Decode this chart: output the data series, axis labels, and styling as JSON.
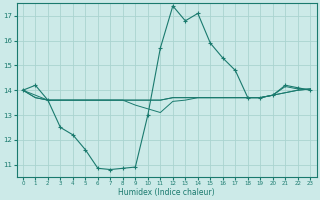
{
  "background_color": "#cceae8",
  "grid_color": "#aad4d0",
  "line_color": "#1a7a6e",
  "xlabel": "Humidex (Indice chaleur)",
  "xlim": [
    -0.5,
    23.5
  ],
  "ylim": [
    10.5,
    17.5
  ],
  "yticks": [
    11,
    12,
    13,
    14,
    15,
    16,
    17
  ],
  "xticks": [
    0,
    1,
    2,
    3,
    4,
    5,
    6,
    7,
    8,
    9,
    10,
    11,
    12,
    13,
    14,
    15,
    16,
    17,
    18,
    19,
    20,
    21,
    22,
    23
  ],
  "series_with_markers": {
    "x": [
      0,
      1,
      2,
      3,
      4,
      5,
      6,
      7,
      8,
      9,
      10,
      11,
      12,
      13,
      14,
      15,
      16,
      17,
      18,
      19,
      20,
      21,
      22,
      23
    ],
    "y": [
      14.0,
      14.2,
      13.6,
      12.5,
      12.2,
      11.6,
      10.85,
      10.8,
      10.85,
      10.9,
      13.0,
      15.7,
      17.4,
      16.8,
      17.1,
      15.9,
      15.3,
      14.8,
      13.7,
      13.7,
      13.8,
      14.2,
      14.1,
      14.0
    ]
  },
  "series_flat": [
    {
      "x": [
        0,
        1,
        2,
        3,
        4,
        5,
        6,
        7,
        8,
        9,
        10,
        11,
        12,
        13,
        14,
        15,
        16,
        17,
        18,
        19,
        20,
        21,
        22,
        23
      ],
      "y": [
        14.0,
        13.7,
        13.6,
        13.6,
        13.6,
        13.6,
        13.6,
        13.6,
        13.6,
        13.6,
        13.6,
        13.6,
        13.7,
        13.7,
        13.7,
        13.7,
        13.7,
        13.7,
        13.7,
        13.7,
        13.8,
        13.9,
        14.0,
        14.05
      ]
    },
    {
      "x": [
        0,
        1,
        2,
        3,
        4,
        5,
        6,
        7,
        8,
        9,
        10,
        11,
        12,
        13,
        14,
        15,
        16,
        17,
        18,
        19,
        20,
        21,
        22,
        23
      ],
      "y": [
        14.0,
        13.7,
        13.6,
        13.6,
        13.6,
        13.6,
        13.6,
        13.6,
        13.6,
        13.4,
        13.25,
        13.1,
        13.55,
        13.6,
        13.7,
        13.7,
        13.7,
        13.7,
        13.7,
        13.7,
        13.8,
        14.15,
        14.05,
        14.05
      ]
    },
    {
      "x": [
        0,
        2,
        3,
        4,
        5,
        6,
        7,
        8,
        9,
        10,
        11,
        12,
        13,
        14,
        15,
        16,
        17,
        18,
        19,
        20,
        21,
        22,
        23
      ],
      "y": [
        14.0,
        13.6,
        13.6,
        13.6,
        13.6,
        13.6,
        13.6,
        13.6,
        13.6,
        13.6,
        13.6,
        13.7,
        13.7,
        13.7,
        13.7,
        13.7,
        13.7,
        13.7,
        13.7,
        13.8,
        13.9,
        14.0,
        14.05
      ]
    }
  ]
}
